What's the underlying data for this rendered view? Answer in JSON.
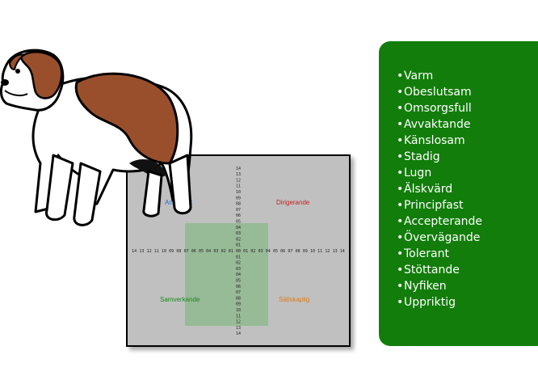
{
  "matrix": {
    "quadrants": {
      "top_left": "Analytiskt",
      "top_right": "Dirigerande",
      "bottom_left": "Samverkande",
      "bottom_right": "Sällskaplig"
    },
    "scale_ticks": [
      "14",
      "13",
      "12",
      "11",
      "10",
      "09",
      "08",
      "07",
      "06",
      "05",
      "04",
      "03",
      "02",
      "01",
      "00",
      "01",
      "02",
      "03",
      "04",
      "05",
      "06",
      "07",
      "08",
      "09",
      "10",
      "11",
      "12",
      "13",
      "14"
    ],
    "colors": {
      "background": "#c0c0c0",
      "zone": "#8fb88f",
      "analytic": "#1f6fd6",
      "directive": "#cc1e1e",
      "cooperative": "#1b8a1b",
      "social": "#e07b12"
    }
  },
  "illustration": {
    "icon": "saint-bernard-dog-icon"
  },
  "traits_panel": {
    "background": "#127d0a",
    "bullet": "•",
    "items": [
      "Varm",
      "Obeslutsam",
      "Omsorgsfull",
      "Avvaktande",
      "Känslosam",
      "Stadig",
      "Lugn",
      "Älskvärd",
      "Principfast",
      "Accepterande",
      "Övervägande",
      "Tolerant",
      "Stöttande",
      "Nyfiken",
      "Uppriktig"
    ]
  }
}
